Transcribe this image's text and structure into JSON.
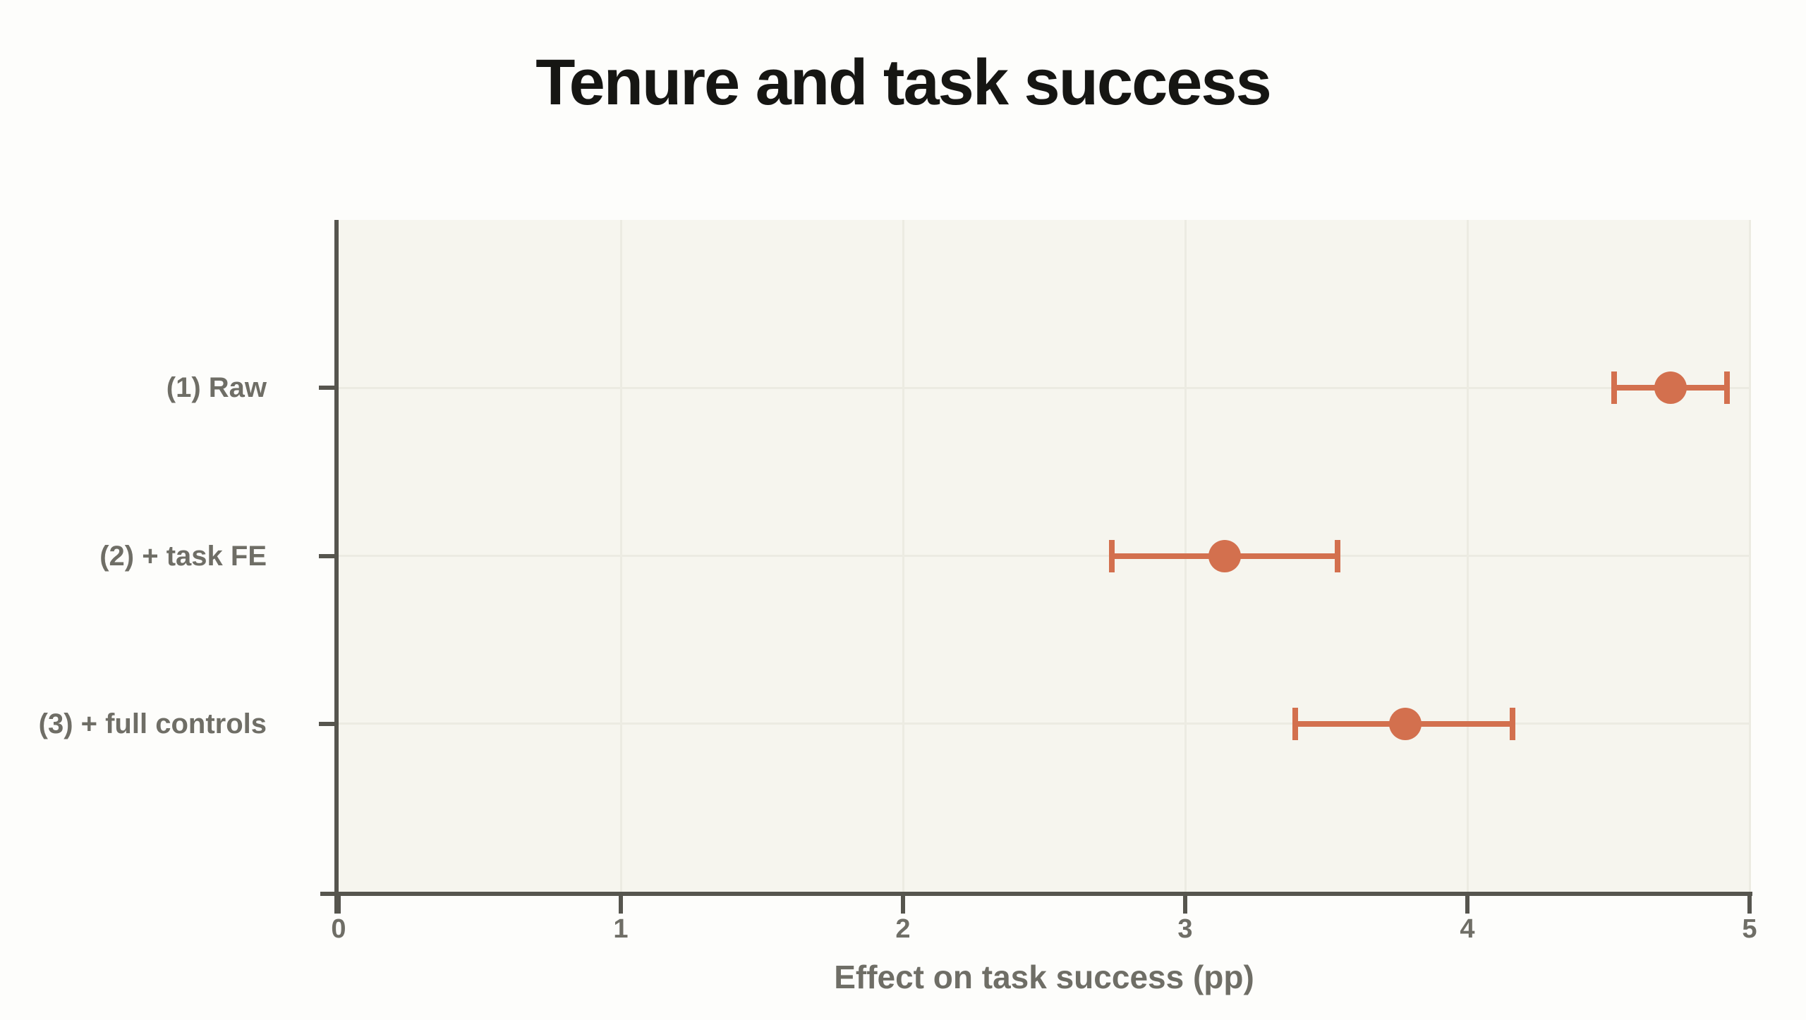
{
  "page": {
    "background": "#fdfdfb"
  },
  "chart": {
    "colors": {
      "accent": "#d3704e",
      "axis": "#56554e",
      "gridline": "#ecebe2",
      "plot_background": "#f6f5ee",
      "title_text": "#161613",
      "label_text": "#6f6e66"
    }
  },
  "chart_data": {
    "type": "scatter",
    "subtype": "coefficient-dot-whisker-plot",
    "title": "Tenure and task success",
    "xlabel": "Effect on task success (pp)",
    "ylabel": "",
    "xlim": [
      0,
      5
    ],
    "x_ticks": [
      0,
      1,
      2,
      3,
      4,
      5
    ],
    "grid": true,
    "legend": false,
    "orientation": "horizontal",
    "categories": [
      "(1) Raw",
      "(2) + task FE",
      "(3) + full controls"
    ],
    "points": [
      {
        "label": "(1) Raw",
        "estimate": 4.72,
        "ci_low": 4.52,
        "ci_high": 4.92
      },
      {
        "label": "(2) + task FE",
        "estimate": 3.14,
        "ci_low": 2.74,
        "ci_high": 3.54
      },
      {
        "label": "(3) + full controls",
        "estimate": 3.78,
        "ci_low": 3.39,
        "ci_high": 4.16
      }
    ]
  }
}
